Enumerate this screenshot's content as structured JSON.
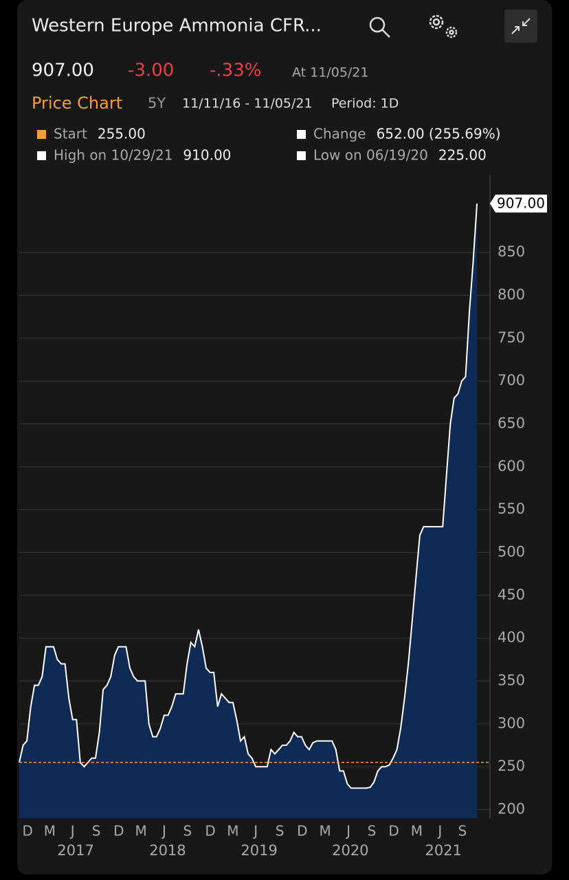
{
  "header": {
    "title": "Western Europe Ammonia CFR...",
    "price": "907.00",
    "change": "-3.00",
    "change_pct": "-.33%",
    "as_of": "At 11/05/21"
  },
  "toolbar": {
    "tab": "Price Chart",
    "range": "5Y",
    "dates": "11/11/16 - 11/05/21",
    "period": "Period: 1D"
  },
  "stats": [
    {
      "label": "Start",
      "value": "255.00",
      "color": "#f29d38"
    },
    {
      "label": "Change",
      "value": "652.00 (255.69%)",
      "color": "#ffffff"
    },
    {
      "label": "High on 10/29/21",
      "value": "910.00",
      "color": "#ffffff"
    },
    {
      "label": "Low on 06/19/20",
      "value": "225.00",
      "color": "#ffffff"
    }
  ],
  "chart_data": {
    "type": "area",
    "series": [
      {
        "color": "#ffffff",
        "fill": "#0e2a55",
        "values": [
          255,
          275,
          280,
          320,
          345,
          345,
          355,
          390,
          390,
          390,
          375,
          370,
          370,
          330,
          305,
          305,
          255,
          250,
          255,
          260,
          260,
          290,
          340,
          345,
          355,
          380,
          390,
          390,
          390,
          365,
          355,
          350,
          350,
          350,
          300,
          285,
          285,
          295,
          310,
          310,
          320,
          335,
          335,
          335,
          370,
          395,
          390,
          410,
          390,
          365,
          360,
          360,
          320,
          335,
          330,
          325,
          325,
          305,
          280,
          285,
          265,
          260,
          250,
          250,
          250,
          250,
          270,
          265,
          270,
          275,
          275,
          280,
          290,
          285,
          285,
          275,
          270,
          278,
          280,
          280,
          280,
          280,
          280,
          270,
          245,
          245,
          230,
          225,
          225,
          225,
          225,
          225,
          226,
          232,
          245,
          250,
          250,
          252,
          260,
          270,
          295,
          330,
          370,
          420,
          470,
          520,
          530,
          530,
          530,
          530,
          530,
          530,
          590,
          650,
          680,
          685,
          700,
          705,
          780,
          840,
          907
        ]
      }
    ],
    "xlim": [
      0,
      123.4
    ],
    "xticks": [
      {
        "value": 2.2,
        "label": "D"
      },
      {
        "value": 8,
        "label": "M"
      },
      {
        "value": 14,
        "label": "J"
      },
      {
        "value": 20.2,
        "label": "S"
      },
      {
        "value": 26.1,
        "label": "D"
      },
      {
        "value": 31.9,
        "label": "M"
      },
      {
        "value": 38,
        "label": "J"
      },
      {
        "value": 44.1,
        "label": "S"
      },
      {
        "value": 50.1,
        "label": "D"
      },
      {
        "value": 56,
        "label": "M"
      },
      {
        "value": 62,
        "label": "J"
      },
      {
        "value": 68.3,
        "label": "S"
      },
      {
        "value": 74.2,
        "label": "D"
      },
      {
        "value": 80.2,
        "label": "M"
      },
      {
        "value": 86.3,
        "label": "J"
      },
      {
        "value": 92.4,
        "label": "S"
      },
      {
        "value": 98.2,
        "label": "D"
      },
      {
        "value": 104.2,
        "label": "M"
      },
      {
        "value": 110.3,
        "label": "J"
      },
      {
        "value": 116.2,
        "label": "S"
      }
    ],
    "year_ticks": [
      {
        "value": 14.8,
        "label": "2017"
      },
      {
        "value": 38.9,
        "label": "2018"
      },
      {
        "value": 62.9,
        "label": "2019"
      },
      {
        "value": 86.8,
        "label": "2020"
      },
      {
        "value": 111.2,
        "label": "2021"
      }
    ],
    "ylim": [
      190,
      940
    ],
    "yticks": [
      200,
      250,
      300,
      350,
      400,
      450,
      500,
      550,
      600,
      650,
      700,
      750,
      800,
      850
    ],
    "grid": true
  }
}
